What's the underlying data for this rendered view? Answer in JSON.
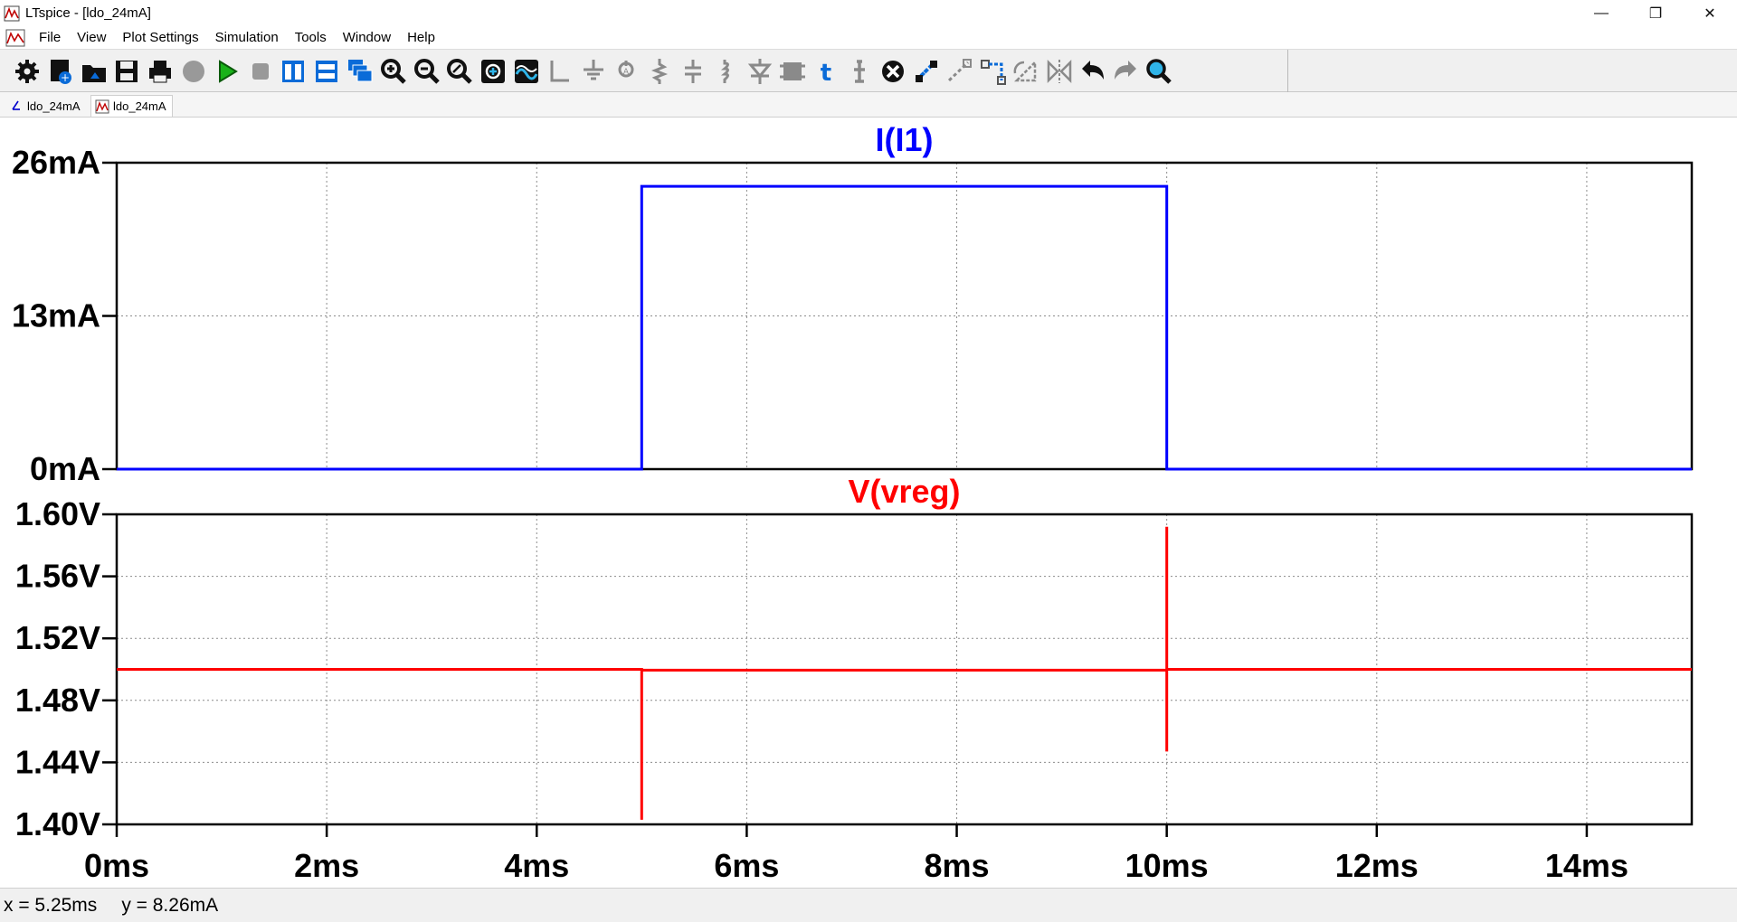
{
  "window": {
    "title": "LTspice - [ldo_24mA]",
    "minimize": "—",
    "maximize": "❐",
    "close": "✕"
  },
  "menu": {
    "items": [
      "File",
      "View",
      "Plot Settings",
      "Simulation",
      "Tools",
      "Window",
      "Help"
    ],
    "mdi_minimize": "–",
    "mdi_restore": "▫",
    "mdi_close": "×"
  },
  "toolbar": {
    "icons": [
      "gear-icon",
      "new-schematic-icon",
      "open-icon",
      "save-icon",
      "print-icon",
      "halt-icon",
      "run-icon",
      "stop-icon",
      "tile-vertical-icon",
      "tile-horizontal-icon",
      "cascade-icon",
      "zoom-in-icon",
      "zoom-out-icon",
      "zoom-fit-icon",
      "autorange-icon",
      "waveform-icon",
      "wire-icon",
      "ground-icon",
      "net-label-icon",
      "resistor-icon",
      "capacitor-icon",
      "inductor-icon",
      "diode-icon",
      "component-icon",
      "text-icon",
      "spice-directive-icon",
      "delete-icon",
      "duplicate-icon",
      "move-icon",
      "drag-icon",
      "rotate-icon",
      "mirror-icon",
      "undo-icon",
      "redo-icon",
      "find-icon"
    ]
  },
  "tabs": [
    {
      "label": "ldo_24mA",
      "kind": "schematic"
    },
    {
      "label": "ldo_24mA",
      "kind": "waveform"
    }
  ],
  "plots": [
    {
      "title": "I(I1)",
      "color": "#0000ff",
      "y_ticks": [
        "26mA",
        "13mA",
        "0mA"
      ]
    },
    {
      "title": "V(vreg)",
      "color": "#ff0000",
      "y_ticks": [
        "1.60V",
        "1.56V",
        "1.52V",
        "1.48V",
        "1.44V",
        "1.40V"
      ]
    }
  ],
  "x_ticks": [
    "0ms",
    "2ms",
    "4ms",
    "6ms",
    "8ms",
    "10ms",
    "12ms",
    "14ms"
  ],
  "status": {
    "x": "x = 5.25ms",
    "y": "y = 8.26mA"
  },
  "chart_data": [
    {
      "type": "line",
      "title": "I(I1)",
      "xlabel": "",
      "ylabel": "",
      "xlim": [
        0,
        15
      ],
      "ylim": [
        0,
        26
      ],
      "x_unit": "ms",
      "y_unit": "mA",
      "grid": true,
      "series": [
        {
          "name": "I(I1)",
          "color": "#0000ff",
          "x": [
            0,
            5.0,
            5.0,
            10.0,
            10.0,
            10.0,
            15.0
          ],
          "y": [
            0,
            0,
            24,
            24,
            12,
            0,
            0
          ]
        }
      ]
    },
    {
      "type": "line",
      "title": "V(vreg)",
      "xlabel": "",
      "ylabel": "",
      "xlim": [
        0,
        15
      ],
      "ylim": [
        1.4,
        1.6
      ],
      "x_unit": "ms",
      "y_unit": "V",
      "grid": true,
      "series": [
        {
          "name": "V(vreg)",
          "color": "#ff0000",
          "x": [
            0,
            5.0,
            5.0,
            5.0,
            5.0,
            10.0,
            10.0,
            10.0,
            10.0,
            10.0,
            15.0
          ],
          "y": [
            1.5,
            1.5,
            1.403,
            1.4995,
            1.4995,
            1.4995,
            1.592,
            1.447,
            1.545,
            1.5,
            1.5
          ]
        }
      ]
    }
  ]
}
